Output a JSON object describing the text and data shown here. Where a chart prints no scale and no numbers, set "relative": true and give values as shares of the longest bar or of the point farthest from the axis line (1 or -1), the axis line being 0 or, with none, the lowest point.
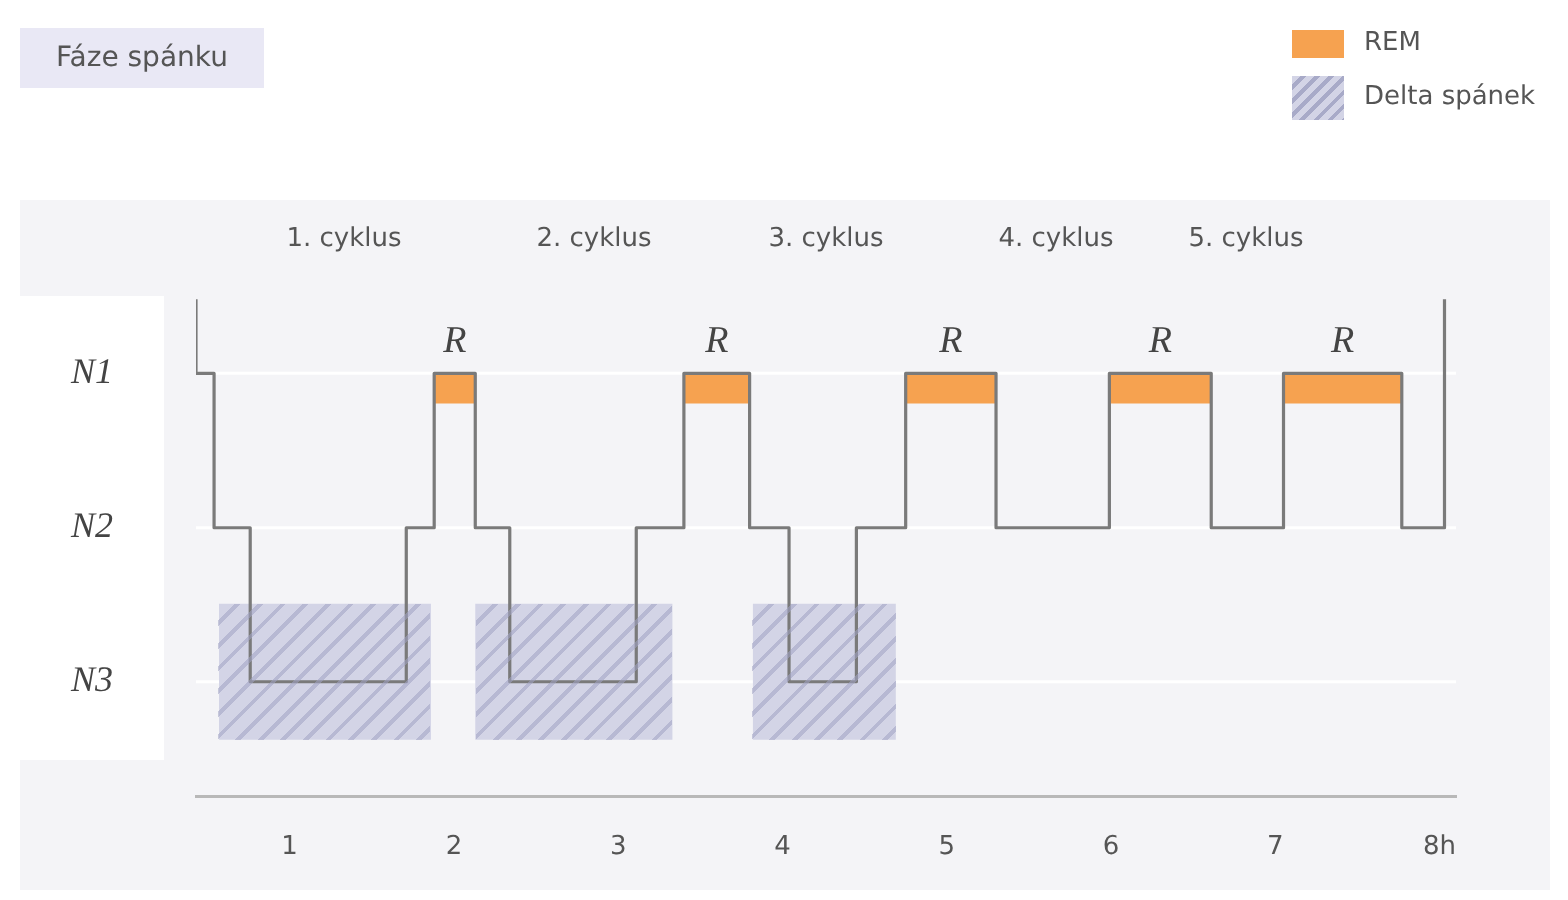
{
  "chart_data": {
    "type": "step",
    "title": "Fáze spánku",
    "relative": true,
    "x": [
      0.43,
      0.43,
      0.54,
      0.76,
      1.71,
      1.88,
      2.13,
      2.34,
      3.11,
      3.4,
      3.8,
      4.04,
      4.45,
      4.75,
      5.3,
      5.99,
      6.61,
      7.05,
      7.77,
      8.03
    ],
    "series": [
      {
        "color": "#7a7a7a",
        "values": [
          1,
          0.851,
          0.54,
          0.23,
          0.54,
          0.851,
          0.54,
          0.23,
          0.54,
          0.851,
          0.54,
          0.23,
          0.54,
          0.851,
          0.54,
          0.851,
          0.54,
          0.851,
          0.54,
          1
        ]
      }
    ],
    "xlim": [
      0.43,
      8.1
    ],
    "xticks": [
      1,
      2,
      3,
      4,
      5,
      6,
      7,
      {
        "value": 8,
        "label": "8h"
      }
    ],
    "marker": "none",
    "line_style": "solid",
    "ref_lines": [
      {
        "axis": "y",
        "value": 0.851,
        "label": "N1",
        "color": "#ffffff"
      },
      {
        "axis": "y",
        "value": 0.54,
        "label": "N2",
        "color": "#ffffff"
      },
      {
        "axis": "y",
        "value": 0.23,
        "label": "N3",
        "color": "#ffffff"
      }
    ],
    "bands": [
      {
        "axis": "x",
        "from": 1.88,
        "to": 2.13,
        "label": "R",
        "color": "#f6a250"
      },
      {
        "axis": "x",
        "from": 3.4,
        "to": 3.8,
        "label": "R",
        "color": "#f6a250"
      },
      {
        "axis": "x",
        "from": 4.75,
        "to": 5.3,
        "label": "R",
        "color": "#f6a250"
      },
      {
        "axis": "x",
        "from": 5.99,
        "to": 6.61,
        "label": "R",
        "color": "#f6a250"
      },
      {
        "axis": "x",
        "from": 7.05,
        "to": 7.77,
        "label": "R",
        "color": "#f6a250"
      },
      {
        "axis": "x",
        "from": 0.57,
        "to": 1.86,
        "color": "#d3d4e6"
      },
      {
        "axis": "x",
        "from": 2.13,
        "to": 3.33,
        "color": "#d3d4e6"
      },
      {
        "axis": "x",
        "from": 3.82,
        "to": 4.69,
        "color": "#d3d4e6"
      }
    ],
    "annotations": [
      "1. cyklus",
      "2. cyklus",
      "3. cyklus",
      "4. cyklus",
      "5. cyklus",
      "REM",
      "Delta spánek"
    ]
  }
}
